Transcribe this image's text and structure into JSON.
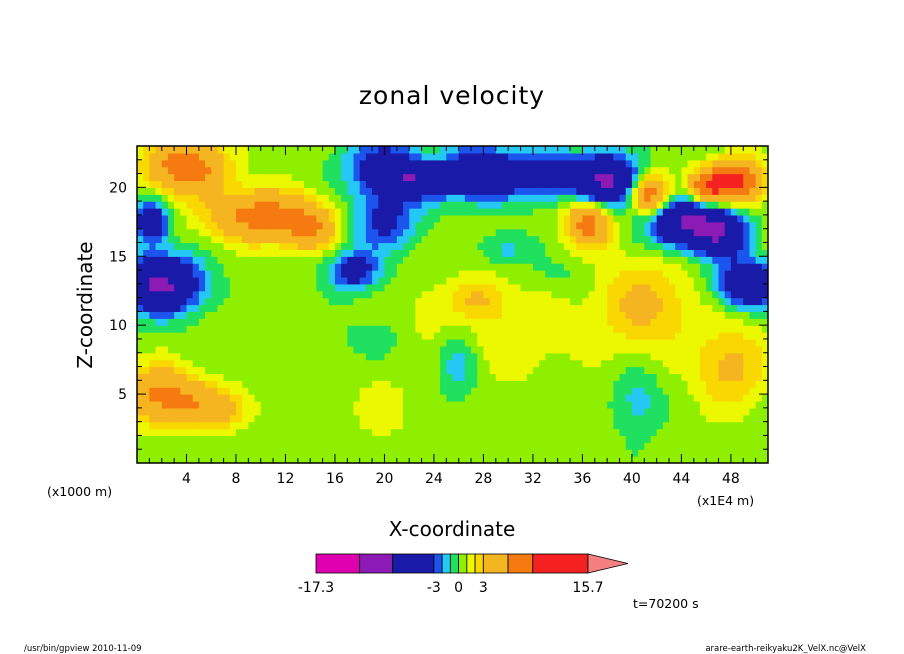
{
  "chart_data": {
    "type": "heatmap",
    "title": "zonal velocity",
    "xlabel": "X-coordinate",
    "ylabel": "Z-coordinate",
    "x_units_left": "(x1000 m)",
    "x_units_right": "(x1E4 m)",
    "xlim": [
      0,
      51
    ],
    "ylim": [
      0,
      23
    ],
    "x_ticks": [
      4,
      8,
      12,
      16,
      20,
      24,
      28,
      32,
      36,
      40,
      44,
      48
    ],
    "y_ticks": [
      5,
      10,
      15,
      20
    ],
    "colorbar": {
      "min": -17.3,
      "max": 15.7,
      "tick_labels": [
        "-17.3",
        "-3",
        "0",
        "3",
        "15.7"
      ],
      "levels": [
        -17.3,
        -12,
        -8,
        -3,
        -2,
        -1,
        0,
        1,
        2,
        3,
        6,
        9,
        15.7
      ],
      "colors": [
        "#e000b0",
        "#8c1ab4",
        "#1a1aa8",
        "#1c55ee",
        "#25c8f5",
        "#20e060",
        "#8ef000",
        "#ecf800",
        "#f8d800",
        "#f5b520",
        "#f57a10",
        "#f52020",
        "#f58080"
      ]
    },
    "annotation": "t=70200 s"
  },
  "footer": {
    "left": "/usr/bin/gpview   2010-11-09",
    "right": "arare-earth-reikyaku2K_VelX.nc@VelX"
  }
}
